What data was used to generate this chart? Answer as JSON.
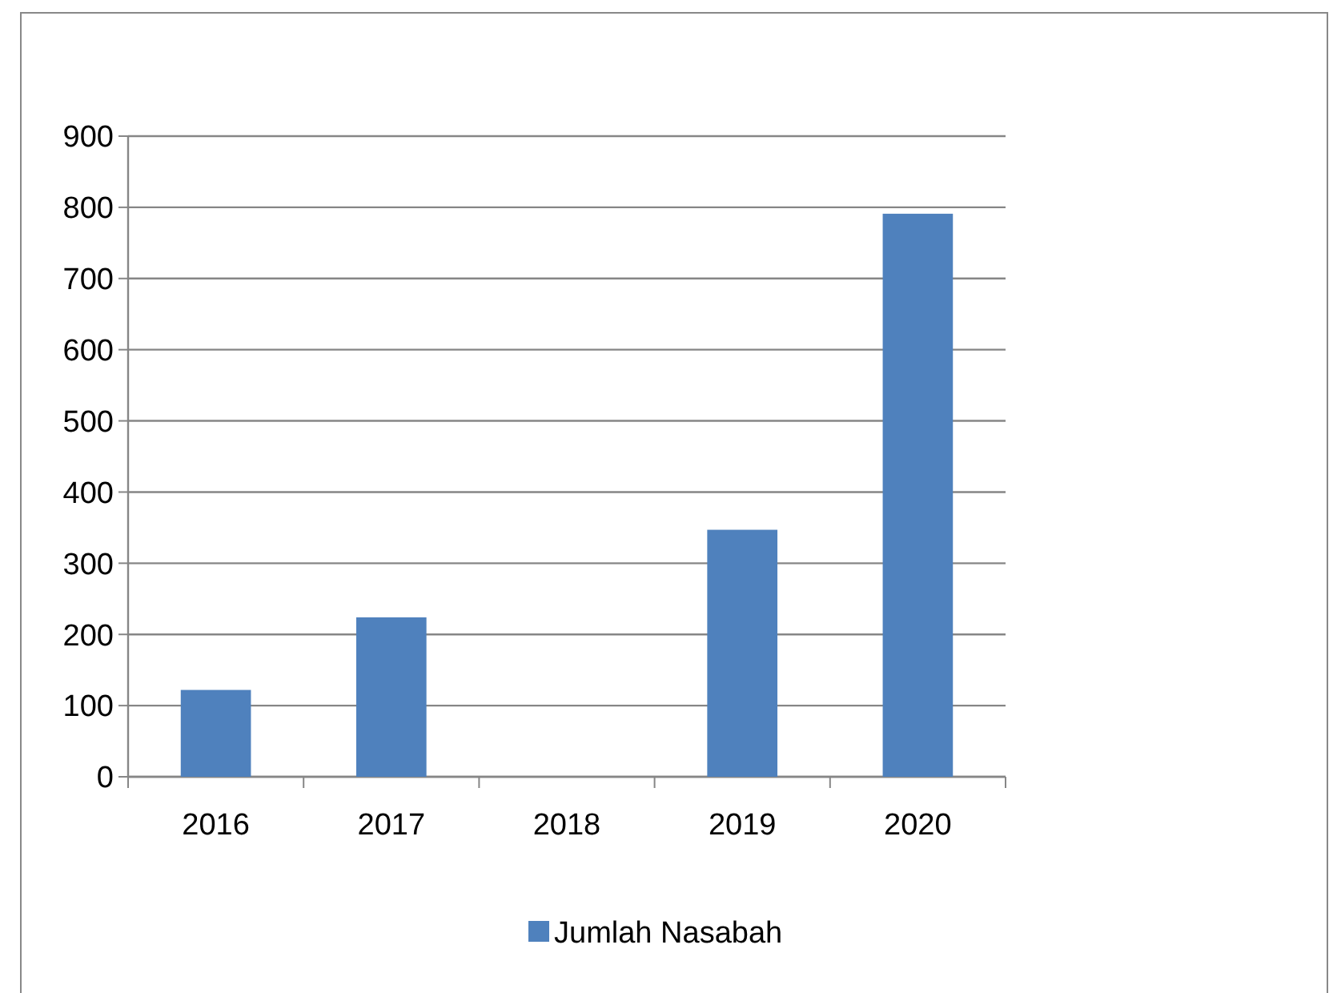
{
  "chart_data": {
    "type": "bar",
    "categories": [
      "2016",
      "2017",
      "2018",
      "2019",
      "2020"
    ],
    "series": [
      {
        "name": "Jumlah Nasabah",
        "color": "#4f81bd",
        "values": [
          122,
          224,
          0,
          347,
          791
        ]
      }
    ],
    "ylim": [
      0,
      900
    ],
    "yticks": [
      0,
      100,
      200,
      300,
      400,
      500,
      600,
      700,
      800,
      900
    ],
    "grid": "y",
    "legend": "bottom"
  }
}
